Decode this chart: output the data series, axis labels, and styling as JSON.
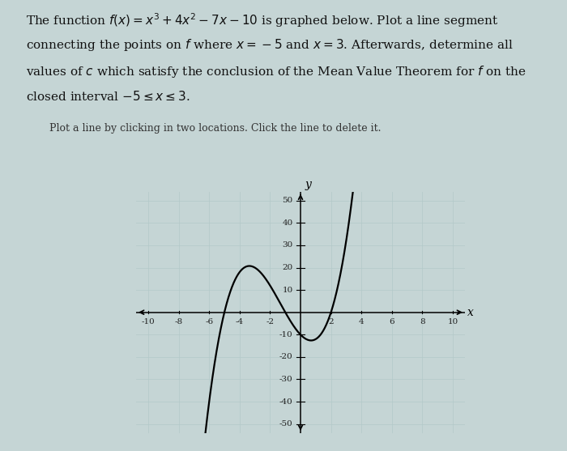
{
  "background_color": "#c5d5d5",
  "plot_bg_color": "#c5d5d5",
  "grid_color": "#b3c8c8",
  "axis_color": "#000000",
  "curve_color": "#000000",
  "xmin": -10,
  "xmax": 10,
  "ymin": -50,
  "ymax": 50,
  "xticks": [
    -10,
    -8,
    -6,
    -4,
    -2,
    2,
    4,
    6,
    8,
    10
  ],
  "yticks": [
    -50,
    -40,
    -30,
    -20,
    -10,
    10,
    20,
    30,
    40,
    50
  ],
  "xlabel": "x",
  "ylabel": "y",
  "coefficients": [
    1,
    4,
    -7,
    -10
  ],
  "title_line1": "The function $f(x) = x^3 + 4x^2 - 7x - 10$ is graphed below. Plot a line segment",
  "title_line2": "connecting the points on $f$ where $x = -5$ and $x = 3$. Afterwards, determine all",
  "title_line3": "values of $c$ which satisfy the conclusion of the Mean Value Theorem for $f$ on the",
  "title_line4": "closed interval $-5 \\leq x \\leq 3$.",
  "subtitle": "Plot a line by clicking in two locations. Click the line to delete it.",
  "title_fontsize": 11,
  "subtitle_fontsize": 9,
  "tick_fontsize": 7.5,
  "axis_label_fontsize": 10
}
